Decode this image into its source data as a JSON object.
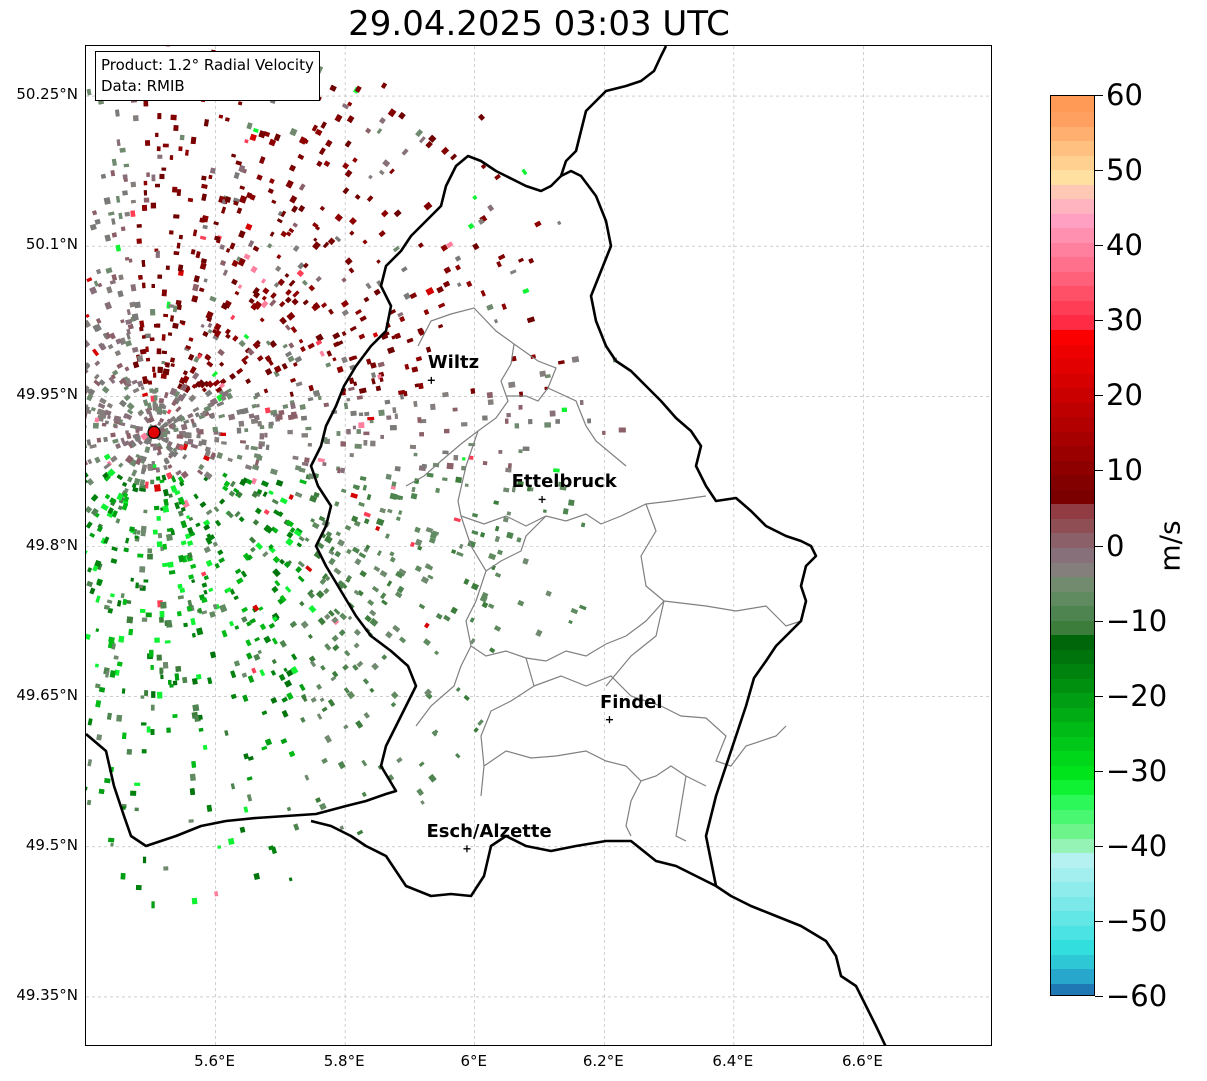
{
  "title": "29.04.2025 03:03 UTC",
  "info": {
    "product": "Product: 1.2° Radial Velocity",
    "source": "Data: RMIB"
  },
  "map": {
    "lon_range": [
      5.4,
      6.8
    ],
    "lat_range": [
      49.3,
      50.3
    ],
    "lat_ticks": [
      {
        "value": 50.25,
        "label": "50.25°N"
      },
      {
        "value": 50.1,
        "label": "50.1°N"
      },
      {
        "value": 49.95,
        "label": "49.95°N"
      },
      {
        "value": 49.8,
        "label": "49.8°N"
      },
      {
        "value": 49.65,
        "label": "49.65°N"
      },
      {
        "value": 49.5,
        "label": "49.5°N"
      },
      {
        "value": 49.35,
        "label": "49.35°N"
      }
    ],
    "lon_ticks": [
      {
        "value": 5.6,
        "label": "5.6°E"
      },
      {
        "value": 5.8,
        "label": "5.8°E"
      },
      {
        "value": 6.0,
        "label": "6°E"
      },
      {
        "value": 6.2,
        "label": "6.2°E"
      },
      {
        "value": 6.4,
        "label": "6.4°E"
      },
      {
        "value": 6.6,
        "label": "6.6°E"
      }
    ],
    "gridlines": true,
    "radar_site": {
      "lon": 5.505,
      "lat": 49.914,
      "color": "#e00000"
    },
    "cities": [
      {
        "name": "Wiltz",
        "lon": 5.933,
        "lat": 49.966
      },
      {
        "name": "Ettelbruck",
        "lon": 6.104,
        "lat": 49.847
      },
      {
        "name": "Findel",
        "lon": 6.208,
        "lat": 49.627
      },
      {
        "name": "Esch/Alzette",
        "lon": 5.988,
        "lat": 49.498
      }
    ]
  },
  "colorbar": {
    "unit": "m/s",
    "min": -60,
    "max": 60,
    "ticks": [
      {
        "value": 60,
        "label": "60"
      },
      {
        "value": 50,
        "label": "50"
      },
      {
        "value": 40,
        "label": "40"
      },
      {
        "value": 30,
        "label": "30"
      },
      {
        "value": 20,
        "label": "20"
      },
      {
        "value": 10,
        "label": "10"
      },
      {
        "value": 0,
        "label": "0"
      },
      {
        "value": -10,
        "label": "−10"
      },
      {
        "value": -20,
        "label": "−20"
      },
      {
        "value": -30,
        "label": "−30"
      },
      {
        "value": -40,
        "label": "−40"
      },
      {
        "value": -50,
        "label": "−50"
      },
      {
        "value": -60,
        "label": "−60"
      }
    ],
    "colors": [
      "#1f78b4",
      "#27a7cc",
      "#2ec7d6",
      "#33dede",
      "#4be3e3",
      "#63e6e6",
      "#7be9e9",
      "#8eecec",
      "#a3efef",
      "#b5f1f1",
      "#95f3b5",
      "#6df58c",
      "#4af771",
      "#2df85a",
      "#0ff233",
      "#00e41c",
      "#00d61a",
      "#00c818",
      "#00ba16",
      "#00ac14",
      "#009e12",
      "#009010",
      "#00820e",
      "#00740c",
      "#00660a",
      "#3c7d3c",
      "#4e8450",
      "#608a60",
      "#728a6e",
      "#847f7c",
      "#88707a",
      "#8c6068",
      "#8e4e54",
      "#903c42",
      "#7a0000",
      "#820000",
      "#8e0000",
      "#9a0000",
      "#a60000",
      "#b20000",
      "#be0000",
      "#ca0000",
      "#d60000",
      "#e20000",
      "#ee0000",
      "#fa0000",
      "#ff2a44",
      "#ff3e56",
      "#ff5068",
      "#ff607a",
      "#ff708c",
      "#ff809e",
      "#ff90b0",
      "#ffa0c2",
      "#ffb4c0",
      "#ffc8b4",
      "#ffe0a0",
      "#ffd090",
      "#ffc080",
      "#ffb070",
      "#ffa060",
      "#ff9a56"
    ]
  }
}
